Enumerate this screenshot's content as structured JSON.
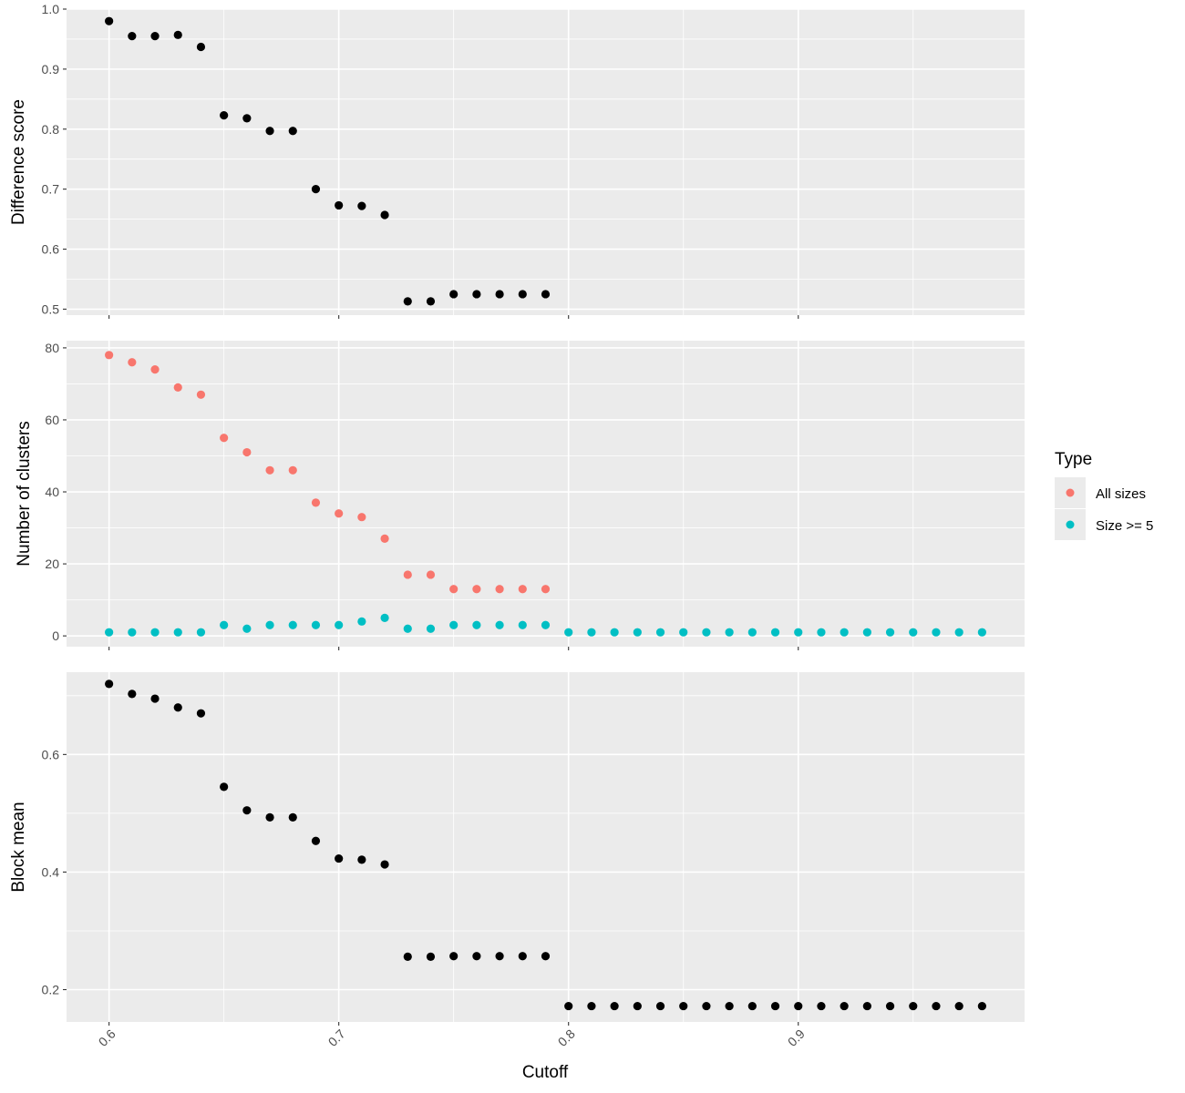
{
  "chart_data": {
    "type": "scatter",
    "xlabel": "Cutoff",
    "x_ticks": [
      0.6,
      0.7,
      0.8,
      0.9
    ],
    "x_tick_labels": [
      "0.6",
      "0.7",
      "0.8",
      "0.9"
    ],
    "xlim": [
      0.5815,
      0.9985
    ],
    "grid": true,
    "legend_position": "right",
    "legend": {
      "title": "Type",
      "entries": [
        {
          "label": "All sizes",
          "color": "#f8766d"
        },
        {
          "label": "Size >= 5",
          "color": "#00bfc4"
        }
      ]
    },
    "panels": [
      {
        "ylabel": "Difference score",
        "ylim": [
          0.49,
          1.0
        ],
        "y_ticks": [
          0.5,
          0.6,
          0.7,
          0.8,
          0.9,
          1.0
        ],
        "y_tick_labels": [
          "0.5",
          "0.6",
          "0.7",
          "0.8",
          "0.9",
          "1.0"
        ],
        "series": [
          {
            "color": "#000000",
            "x": [
              0.6,
              0.61,
              0.62,
              0.63,
              0.64,
              0.65,
              0.66,
              0.67,
              0.68,
              0.69,
              0.7,
              0.71,
              0.72,
              0.73,
              0.74,
              0.75,
              0.76,
              0.77,
              0.78,
              0.79
            ],
            "y": [
              0.98,
              0.955,
              0.955,
              0.957,
              0.937,
              0.823,
              0.818,
              0.797,
              0.797,
              0.7,
              0.673,
              0.672,
              0.657,
              0.513,
              0.513,
              0.525,
              0.525,
              0.525,
              0.525,
              0.525
            ]
          }
        ]
      },
      {
        "ylabel": "Number of clusters",
        "ylim": [
          -3,
          82
        ],
        "y_ticks": [
          0,
          20,
          40,
          60,
          80
        ],
        "y_tick_labels": [
          "0",
          "20",
          "40",
          "60",
          "80"
        ],
        "series": [
          {
            "name": "All sizes",
            "color": "#f8766d",
            "x": [
              0.6,
              0.61,
              0.62,
              0.63,
              0.64,
              0.65,
              0.66,
              0.67,
              0.68,
              0.69,
              0.7,
              0.71,
              0.72,
              0.73,
              0.74,
              0.75,
              0.76,
              0.77,
              0.78,
              0.79
            ],
            "y": [
              78,
              76,
              74,
              69,
              67,
              55,
              51,
              46,
              46,
              37,
              34,
              33,
              27,
              17,
              17,
              13,
              13,
              13,
              13,
              13
            ]
          },
          {
            "name": "Size >= 5",
            "color": "#00bfc4",
            "x": [
              0.6,
              0.61,
              0.62,
              0.63,
              0.64,
              0.65,
              0.66,
              0.67,
              0.68,
              0.69,
              0.7,
              0.71,
              0.72,
              0.73,
              0.74,
              0.75,
              0.76,
              0.77,
              0.78,
              0.79,
              0.8,
              0.81,
              0.82,
              0.83,
              0.84,
              0.85,
              0.86,
              0.87,
              0.88,
              0.89,
              0.9,
              0.91,
              0.92,
              0.93,
              0.94,
              0.95,
              0.96,
              0.97,
              0.98
            ],
            "y": [
              1,
              1,
              1,
              1,
              1,
              3,
              2,
              3,
              3,
              3,
              3,
              4,
              5,
              2,
              2,
              3,
              3,
              3,
              3,
              3,
              1,
              1,
              1,
              1,
              1,
              1,
              1,
              1,
              1,
              1,
              1,
              1,
              1,
              1,
              1,
              1,
              1,
              1,
              1
            ]
          }
        ]
      },
      {
        "ylabel": "Block mean",
        "ylim": [
          0.145,
          0.74
        ],
        "y_ticks": [
          0.2,
          0.4,
          0.6
        ],
        "y_tick_labels": [
          "0.2",
          "0.4",
          "0.6"
        ],
        "series": [
          {
            "color": "#000000",
            "x": [
              0.6,
              0.61,
              0.62,
              0.63,
              0.64,
              0.65,
              0.66,
              0.67,
              0.68,
              0.69,
              0.7,
              0.71,
              0.72,
              0.73,
              0.74,
              0.75,
              0.76,
              0.77,
              0.78,
              0.79,
              0.8,
              0.81,
              0.82,
              0.83,
              0.84,
              0.85,
              0.86,
              0.87,
              0.88,
              0.89,
              0.9,
              0.91,
              0.92,
              0.93,
              0.94,
              0.95,
              0.96,
              0.97,
              0.98
            ],
            "y": [
              0.72,
              0.703,
              0.695,
              0.68,
              0.67,
              0.545,
              0.505,
              0.493,
              0.493,
              0.453,
              0.423,
              0.421,
              0.413,
              0.256,
              0.256,
              0.257,
              0.257,
              0.257,
              0.257,
              0.257,
              0.172,
              0.172,
              0.172,
              0.172,
              0.172,
              0.172,
              0.172,
              0.172,
              0.172,
              0.172,
              0.172,
              0.172,
              0.172,
              0.172,
              0.172,
              0.172,
              0.172,
              0.172,
              0.172
            ]
          }
        ]
      }
    ]
  }
}
